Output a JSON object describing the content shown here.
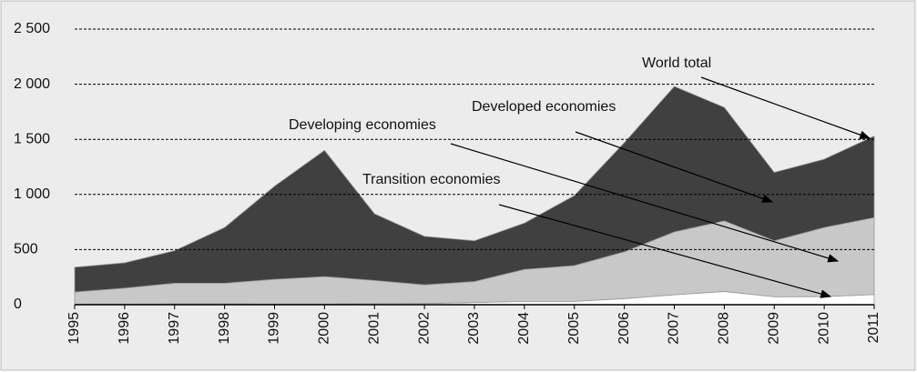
{
  "chart_data": {
    "type": "stacked-area",
    "categories": [
      "1995",
      "1996",
      "1997",
      "1998",
      "1999",
      "2000",
      "2001",
      "2002",
      "2003",
      "2004",
      "2005",
      "2006",
      "2007",
      "2008",
      "2009",
      "2010",
      "2011"
    ],
    "series": [
      {
        "name": "Transition economies",
        "color": "#ffffff",
        "values": [
          5,
          6,
          8,
          8,
          7,
          7,
          9,
          11,
          20,
          30,
          30,
          55,
          90,
          120,
          72,
          73,
          92
        ]
      },
      {
        "name": "Developing economies",
        "color": "#c8c8c8",
        "values": [
          110,
          144,
          187,
          187,
          223,
          248,
          211,
          169,
          190,
          290,
          325,
          425,
          570,
          640,
          508,
          627,
          698
        ]
      },
      {
        "name": "Developed economies",
        "color": "#404040",
        "values": [
          225,
          230,
          295,
          505,
          845,
          1145,
          605,
          440,
          370,
          420,
          635,
          990,
          1320,
          1030,
          620,
          620,
          740
        ]
      }
    ],
    "total_name": "World total",
    "ylim": [
      0,
      2500
    ],
    "yticks": [
      0,
      500,
      {
        "value": 1000,
        "label": "1 000"
      },
      {
        "value": 1500,
        "label": "1 500"
      },
      {
        "value": 2000,
        "label": "2 000"
      },
      {
        "value": 2500,
        "label": "2 500"
      }
    ],
    "grid": true
  }
}
